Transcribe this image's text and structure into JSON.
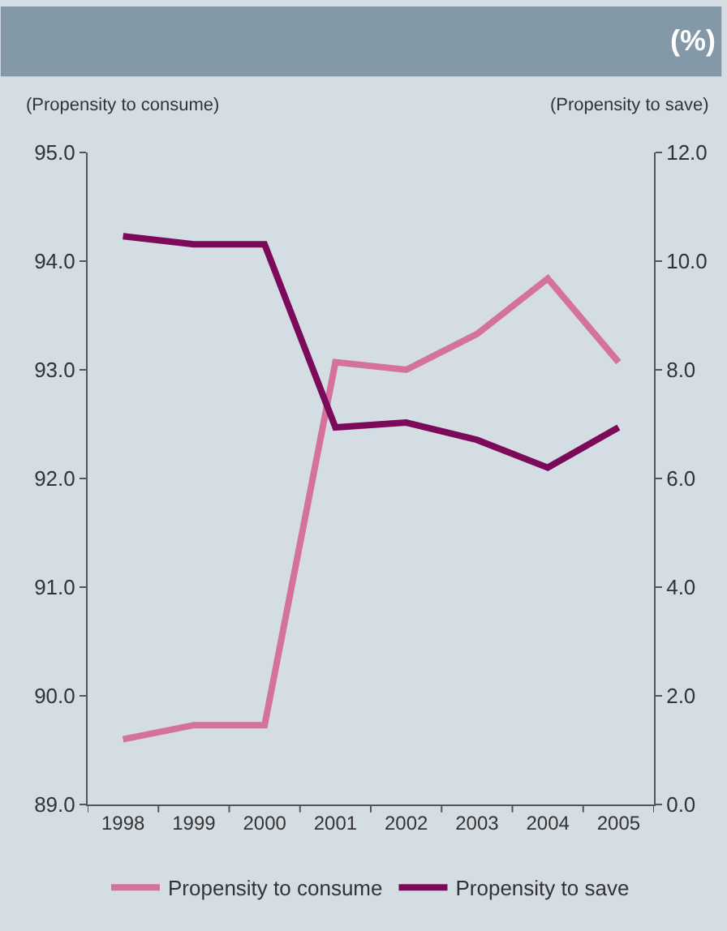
{
  "chart_data": {
    "type": "line",
    "subtitle": "(%)",
    "ylabel": "(Propensity to consume)",
    "y2label": "(Propensity to save)",
    "categories": [
      "1998",
      "1999",
      "2000",
      "2001",
      "2002",
      "2003",
      "2004",
      "2005"
    ],
    "series": [
      {
        "name": "Propensity to consume",
        "color": "#d4719c",
        "values": [
          89.6,
          89.73,
          89.73,
          93.07,
          93.0,
          93.33,
          93.84,
          93.07
        ]
      },
      {
        "name": "Propensity to save",
        "color": "#7b0a5a",
        "axis": "y2",
        "values": [
          10.46,
          10.31,
          10.31,
          6.94,
          7.03,
          6.71,
          6.2,
          6.94
        ]
      }
    ],
    "ylim": [
      89.0,
      95.0
    ],
    "yticks": [
      {
        "value": 89,
        "label": "89.0"
      },
      {
        "value": 90,
        "label": "90.0"
      },
      {
        "value": 91,
        "label": "91.0"
      },
      {
        "value": 92,
        "label": "92.0"
      },
      {
        "value": 93,
        "label": "93.0"
      },
      {
        "value": 94,
        "label": "94.0"
      },
      {
        "value": 95,
        "label": "95.0"
      }
    ],
    "y2lim": [
      0,
      12.0
    ],
    "y2ticks": [
      {
        "value": 0,
        "label": "0.0"
      },
      {
        "value": 2,
        "label": "2.0"
      },
      {
        "value": 4,
        "label": "4.0"
      },
      {
        "value": 6,
        "label": "6.0"
      },
      {
        "value": 8,
        "label": "8.0"
      },
      {
        "value": 10,
        "label": "10.0"
      },
      {
        "value": 12,
        "label": "12.0"
      }
    ],
    "grid": false,
    "legend": "bottom",
    "marker": "none",
    "line_style": "solid"
  }
}
